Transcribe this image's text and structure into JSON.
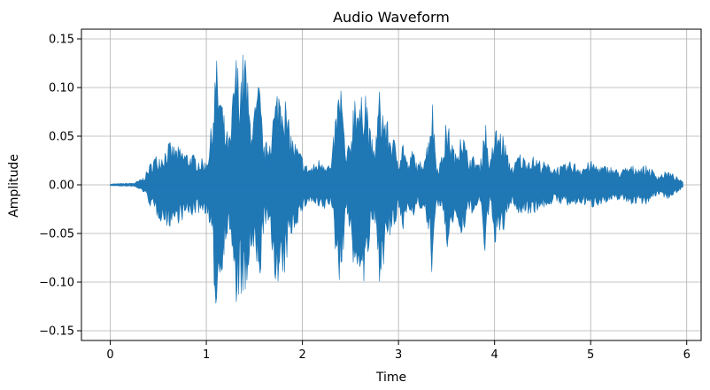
{
  "chart_data": {
    "type": "area",
    "title": "Audio Waveform",
    "xlabel": "Time",
    "ylabel": "Amplitude",
    "xlim": [
      -0.3,
      6.15
    ],
    "ylim": [
      -0.16,
      0.16
    ],
    "xticks": [
      0,
      1,
      2,
      3,
      4,
      5,
      6
    ],
    "xtick_labels": [
      "0",
      "1",
      "2",
      "3",
      "4",
      "5",
      "6"
    ],
    "yticks": [
      -0.15,
      -0.1,
      -0.05,
      0.0,
      0.05,
      0.1,
      0.15
    ],
    "ytick_labels": [
      "−0.15",
      "−0.10",
      "−0.05",
      "0.00",
      "0.05",
      "0.10",
      "0.15"
    ],
    "grid": true,
    "line_color": "#1f77b4",
    "series": [
      {
        "x": [
          0.0,
          0.25,
          0.35,
          0.45,
          0.55,
          0.6,
          0.7,
          0.8,
          0.9,
          1.0,
          1.05,
          1.1,
          1.15,
          1.2,
          1.25,
          1.3,
          1.35,
          1.4,
          1.45,
          1.5,
          1.55,
          1.6,
          1.65,
          1.7,
          1.75,
          1.8,
          1.85,
          1.9,
          1.95,
          2.0,
          2.05,
          2.1,
          2.2,
          2.3,
          2.35,
          2.4,
          2.45,
          2.5,
          2.55,
          2.6,
          2.65,
          2.7,
          2.75,
          2.8,
          2.85,
          2.9,
          2.95,
          3.0,
          3.05,
          3.1,
          3.15,
          3.2,
          3.25,
          3.3,
          3.35,
          3.4,
          3.45,
          3.5,
          3.55,
          3.6,
          3.65,
          3.7,
          3.75,
          3.8,
          3.85,
          3.9,
          3.95,
          4.0,
          4.05,
          4.1,
          4.15,
          4.2,
          4.25,
          4.3,
          4.4,
          4.5,
          4.6,
          4.7,
          4.8,
          4.9,
          5.0,
          5.1,
          5.2,
          5.3,
          5.4,
          5.5,
          5.6,
          5.7,
          5.8,
          5.9,
          5.96
        ],
        "upper": [
          0.001,
          0.002,
          0.008,
          0.03,
          0.035,
          0.045,
          0.04,
          0.035,
          0.03,
          0.025,
          0.06,
          0.135,
          0.1,
          0.06,
          0.05,
          0.14,
          0.12,
          0.15,
          0.08,
          0.08,
          0.11,
          0.04,
          0.05,
          0.08,
          0.11,
          0.11,
          0.07,
          0.05,
          0.04,
          0.03,
          0.02,
          0.02,
          0.03,
          0.02,
          0.08,
          0.115,
          0.03,
          0.05,
          0.115,
          0.08,
          0.12,
          0.06,
          0.035,
          0.1,
          0.08,
          0.06,
          0.05,
          0.03,
          0.05,
          0.02,
          0.04,
          0.02,
          0.03,
          0.045,
          0.095,
          0.02,
          0.03,
          0.07,
          0.05,
          0.03,
          0.07,
          0.04,
          0.03,
          0.03,
          0.02,
          0.075,
          0.02,
          0.06,
          0.06,
          0.05,
          0.025,
          0.02,
          0.035,
          0.03,
          0.03,
          0.025,
          0.02,
          0.02,
          0.025,
          0.02,
          0.025,
          0.02,
          0.02,
          0.015,
          0.02,
          0.02,
          0.02,
          0.01,
          0.015,
          0.008,
          0.003
        ],
        "lower": [
          -0.001,
          -0.002,
          -0.008,
          -0.03,
          -0.04,
          -0.045,
          -0.04,
          -0.035,
          -0.03,
          -0.03,
          -0.06,
          -0.135,
          -0.1,
          -0.06,
          -0.05,
          -0.14,
          -0.11,
          -0.145,
          -0.08,
          -0.08,
          -0.115,
          -0.04,
          -0.05,
          -0.085,
          -0.12,
          -0.11,
          -0.07,
          -0.05,
          -0.04,
          -0.03,
          -0.02,
          -0.02,
          -0.03,
          -0.02,
          -0.08,
          -0.11,
          -0.03,
          -0.05,
          -0.115,
          -0.085,
          -0.115,
          -0.06,
          -0.04,
          -0.1,
          -0.08,
          -0.06,
          -0.05,
          -0.03,
          -0.05,
          -0.02,
          -0.04,
          -0.02,
          -0.03,
          -0.045,
          -0.095,
          -0.02,
          -0.03,
          -0.07,
          -0.05,
          -0.03,
          -0.07,
          -0.04,
          -0.03,
          -0.03,
          -0.02,
          -0.075,
          -0.02,
          -0.06,
          -0.06,
          -0.05,
          -0.025,
          -0.02,
          -0.035,
          -0.03,
          -0.03,
          -0.025,
          -0.02,
          -0.02,
          -0.025,
          -0.02,
          -0.025,
          -0.02,
          -0.02,
          -0.015,
          -0.02,
          -0.02,
          -0.02,
          -0.01,
          -0.015,
          -0.008,
          -0.003
        ]
      }
    ]
  }
}
